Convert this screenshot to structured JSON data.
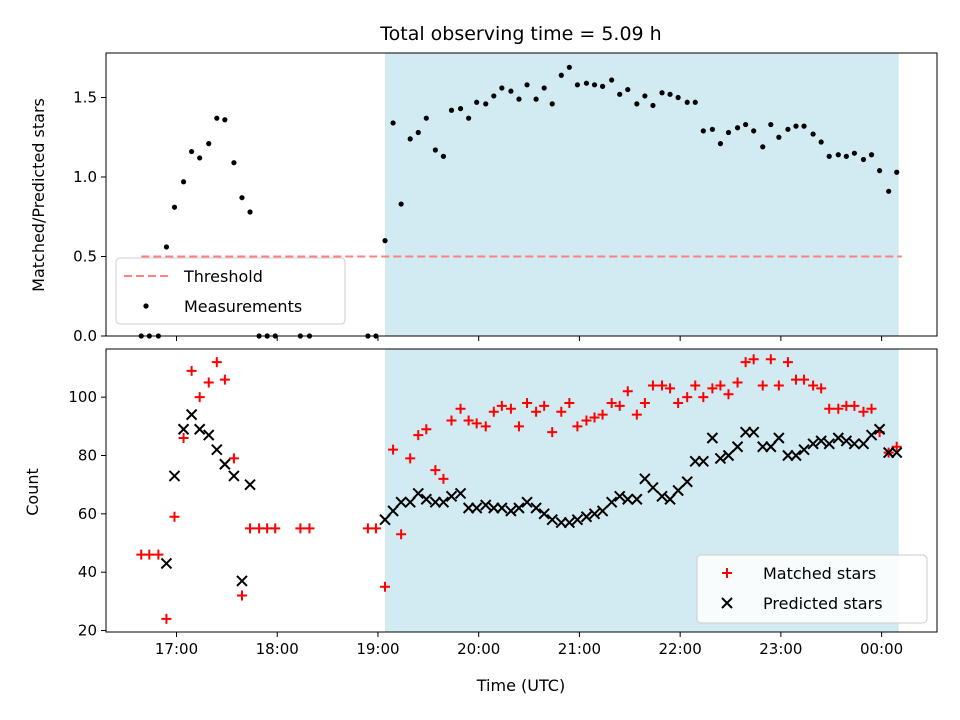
{
  "chart_data": [
    {
      "type": "scatter",
      "panel": "top",
      "title": "Total observing time = 5.09 h",
      "ylabel": "Matched/Predicted stars",
      "ylim": [
        0,
        1.78
      ],
      "yticks": [
        "0.0",
        "0.5",
        "1.0",
        "1.5"
      ],
      "ytick_values": [
        0,
        0.5,
        1.0,
        1.5
      ],
      "xlim": [
        16.3,
        24.55
      ],
      "xtick_values": [
        17,
        18,
        19,
        20,
        21,
        22,
        23,
        24
      ],
      "shaded_span": [
        19.07,
        24.17
      ],
      "shade_color": "#add8e6",
      "threshold": {
        "name": "Threshold",
        "value": 0.5,
        "x_range": [
          16.65,
          24.2
        ],
        "color": "#ff8080"
      },
      "measurements": {
        "name": "Measurements",
        "color": "#000000",
        "x": [
          16.65,
          16.73,
          16.82,
          16.9,
          16.98,
          17.07,
          17.15,
          17.23,
          17.32,
          17.4,
          17.48,
          17.57,
          17.65,
          17.73,
          17.82,
          17.9,
          17.98,
          18.23,
          18.32,
          18.9,
          18.98,
          19.07,
          19.15,
          19.23,
          19.32,
          19.4,
          19.48,
          19.57,
          19.65,
          19.73,
          19.82,
          19.9,
          19.98,
          20.07,
          20.15,
          20.23,
          20.32,
          20.4,
          20.48,
          20.57,
          20.65,
          20.73,
          20.82,
          20.9,
          20.98,
          21.07,
          21.15,
          21.23,
          21.32,
          21.4,
          21.48,
          21.57,
          21.65,
          21.73,
          21.82,
          21.9,
          21.98,
          22.07,
          22.15,
          22.23,
          22.32,
          22.4,
          22.48,
          22.57,
          22.65,
          22.73,
          22.82,
          22.9,
          22.98,
          23.07,
          23.15,
          23.23,
          23.32,
          23.4,
          23.48,
          23.57,
          23.65,
          23.73,
          23.82,
          23.9,
          23.98,
          24.07,
          24.15
        ],
        "y": [
          0,
          0,
          0,
          0.56,
          0.81,
          0.97,
          1.16,
          1.12,
          1.21,
          1.37,
          1.36,
          1.09,
          0.87,
          0.78,
          0,
          0,
          0,
          0,
          0,
          0,
          0,
          0.6,
          1.34,
          0.83,
          1.24,
          1.28,
          1.37,
          1.17,
          1.13,
          1.42,
          1.43,
          1.37,
          1.47,
          1.46,
          1.51,
          1.56,
          1.54,
          1.49,
          1.58,
          1.49,
          1.56,
          1.46,
          1.64,
          1.69,
          1.58,
          1.59,
          1.58,
          1.57,
          1.61,
          1.52,
          1.55,
          1.46,
          1.51,
          1.45,
          1.53,
          1.52,
          1.5,
          1.47,
          1.47,
          1.29,
          1.3,
          1.21,
          1.28,
          1.31,
          1.33,
          1.29,
          1.19,
          1.33,
          1.25,
          1.3,
          1.32,
          1.32,
          1.27,
          1.22,
          1.13,
          1.14,
          1.13,
          1.15,
          1.11,
          1.14,
          1.04,
          0.91,
          1.03
        ]
      },
      "legend": "lower-left"
    },
    {
      "type": "scatter",
      "panel": "bottom",
      "xlabel": "Time (UTC)",
      "ylabel": "Count",
      "ylim": [
        19.5,
        116.5
      ],
      "yticks": [
        "20",
        "40",
        "60",
        "80",
        "100"
      ],
      "ytick_values": [
        20,
        40,
        60,
        80,
        100
      ],
      "xlim": [
        16.3,
        24.55
      ],
      "xticks": [
        "17:00",
        "18:00",
        "19:00",
        "20:00",
        "21:00",
        "22:00",
        "23:00",
        "00:00"
      ],
      "xtick_values": [
        17,
        18,
        19,
        20,
        21,
        22,
        23,
        24
      ],
      "shaded_span": [
        19.07,
        24.17
      ],
      "shade_color": "#add8e6",
      "series": [
        {
          "name": "Matched stars",
          "marker": "plus",
          "color": "#ff0000",
          "x": [
            16.65,
            16.73,
            16.82,
            16.9,
            16.98,
            17.07,
            17.15,
            17.23,
            17.32,
            17.4,
            17.48,
            17.57,
            17.65,
            17.73,
            17.82,
            17.9,
            17.98,
            18.23,
            18.32,
            18.9,
            18.98,
            19.07,
            19.15,
            19.23,
            19.32,
            19.4,
            19.48,
            19.57,
            19.65,
            19.73,
            19.82,
            19.9,
            19.98,
            20.07,
            20.15,
            20.23,
            20.32,
            20.4,
            20.48,
            20.57,
            20.65,
            20.73,
            20.82,
            20.9,
            20.98,
            21.07,
            21.15,
            21.23,
            21.32,
            21.4,
            21.48,
            21.57,
            21.65,
            21.73,
            21.82,
            21.9,
            21.98,
            22.07,
            22.15,
            22.23,
            22.32,
            22.4,
            22.48,
            22.57,
            22.65,
            22.73,
            22.82,
            22.9,
            22.98,
            23.07,
            23.15,
            23.23,
            23.32,
            23.4,
            23.48,
            23.57,
            23.65,
            23.73,
            23.82,
            23.9,
            23.98,
            24.07,
            24.15
          ],
          "y": [
            46,
            46,
            46,
            24,
            59,
            86,
            109,
            100,
            105,
            112,
            106,
            79,
            32,
            55,
            55,
            55,
            55,
            55,
            55,
            55,
            55,
            35,
            82,
            53,
            79,
            87,
            89,
            75,
            72,
            92,
            96,
            92,
            91,
            90,
            95,
            97,
            96,
            90,
            98,
            95,
            97,
            88,
            95,
            98,
            90,
            92,
            93,
            94,
            98,
            97,
            102,
            94,
            98,
            104,
            104,
            103,
            98,
            100,
            104,
            100,
            103,
            104,
            101,
            105,
            112,
            113,
            104,
            113,
            104,
            112,
            106,
            106,
            104,
            103,
            96,
            96,
            97,
            97,
            95,
            96,
            88,
            81,
            83
          ]
        },
        {
          "name": "Predicted stars",
          "marker": "x",
          "color": "#000000",
          "x": [
            16.9,
            16.98,
            17.07,
            17.15,
            17.23,
            17.32,
            17.4,
            17.48,
            17.57,
            17.65,
            17.73,
            19.07,
            19.15,
            19.23,
            19.32,
            19.4,
            19.48,
            19.57,
            19.65,
            19.73,
            19.82,
            19.9,
            19.98,
            20.07,
            20.15,
            20.23,
            20.32,
            20.4,
            20.48,
            20.57,
            20.65,
            20.73,
            20.82,
            20.9,
            20.98,
            21.07,
            21.15,
            21.23,
            21.32,
            21.4,
            21.48,
            21.57,
            21.65,
            21.73,
            21.82,
            21.9,
            21.98,
            22.07,
            22.15,
            22.23,
            22.32,
            22.4,
            22.48,
            22.57,
            22.65,
            22.73,
            22.82,
            22.9,
            22.98,
            23.07,
            23.15,
            23.23,
            23.32,
            23.4,
            23.48,
            23.57,
            23.65,
            23.73,
            23.82,
            23.9,
            23.98,
            24.07,
            24.15
          ],
          "y": [
            43,
            73,
            89,
            94,
            89,
            87,
            82,
            77,
            73,
            37,
            70,
            58,
            61,
            64,
            64,
            67,
            65,
            64,
            64,
            66,
            67,
            62,
            62,
            63,
            62,
            62,
            61,
            62,
            64,
            62,
            60,
            58,
            57,
            57,
            58,
            59,
            60,
            61,
            64,
            66,
            65,
            65,
            72,
            69,
            66,
            65,
            68,
            71,
            78,
            78,
            86,
            79,
            80,
            83,
            88,
            88,
            83,
            83,
            86,
            80,
            80,
            82,
            84,
            85,
            84,
            86,
            85,
            84,
            84,
            87,
            89,
            81,
            81
          ]
        }
      ],
      "legend": "lower-right"
    }
  ]
}
